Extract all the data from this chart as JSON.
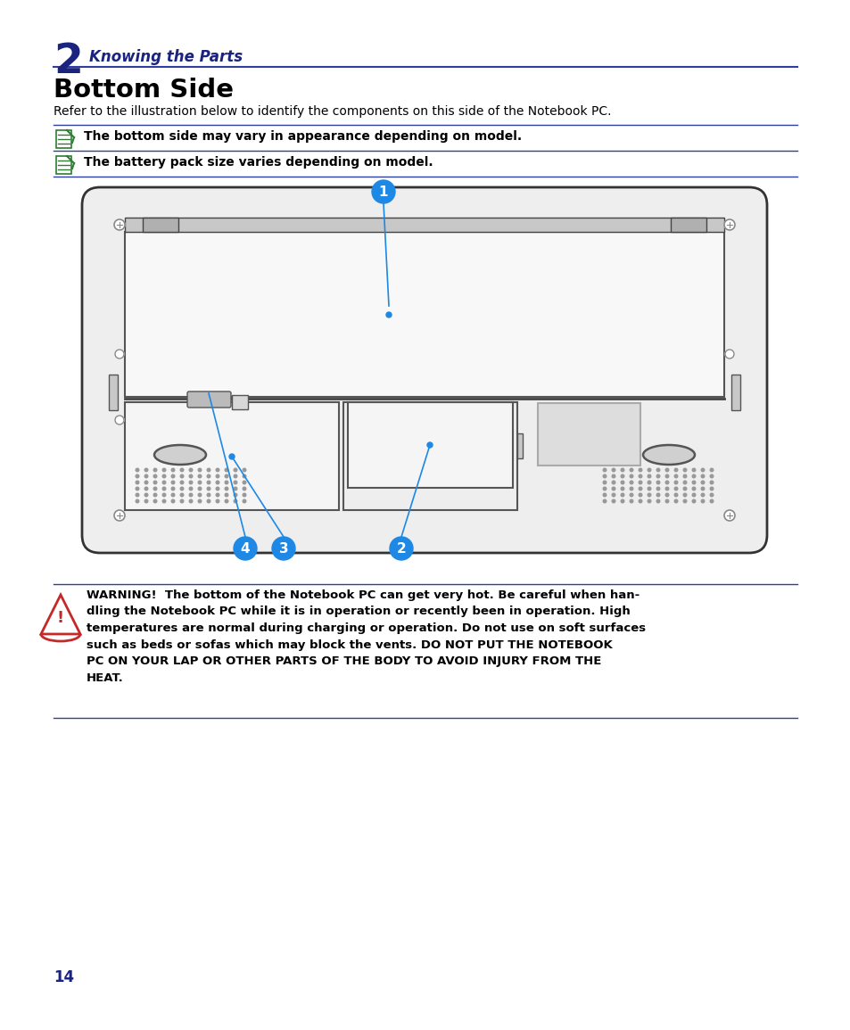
{
  "chapter_num": "2",
  "chapter_title": "Knowing the Parts",
  "section_title": "Bottom Side",
  "section_desc": "Refer to the illustration below to identify the components on this side of the Notebook PC.",
  "note1": "The bottom side may vary in appearance depending on model.",
  "note2": "The battery pack size varies depending on model.",
  "warning_text": "WARNING!  The bottom of the Notebook PC can get very hot. Be careful when han-\ndling the Notebook PC while it is in operation or recently been in operation. High\ntemperatures are normal during charging or operation. Do not use on soft surfaces\nsuch as beds or sofas which may block the vents. DO NOT PUT THE NOTEBOOK\nPC ON YOUR LAP OR OTHER PARTS OF THE BODY TO AVOID INJURY FROM THE\nHEAT.",
  "page_num": "14",
  "dark_blue": "#1A237E",
  "blue_color": "#1F3B8F",
  "label_circle_color": "#1E88E5",
  "bg_color": "#FFFFFF",
  "line_color": "#303F9F",
  "green_icon": "#2E7D32",
  "warning_red": "#C62828",
  "body_color": "#EEEEEE",
  "body_edge": "#333333",
  "panel_color": "#F5F5F5",
  "panel_edge": "#555555",
  "top_panel_color": "#DCDCDC",
  "screw_color": "#888888",
  "latch_color": "#BBBBBB",
  "speaker_dot_color": "#999999",
  "oval_color": "#CCCCCC",
  "label_color": "#DDDDDD"
}
